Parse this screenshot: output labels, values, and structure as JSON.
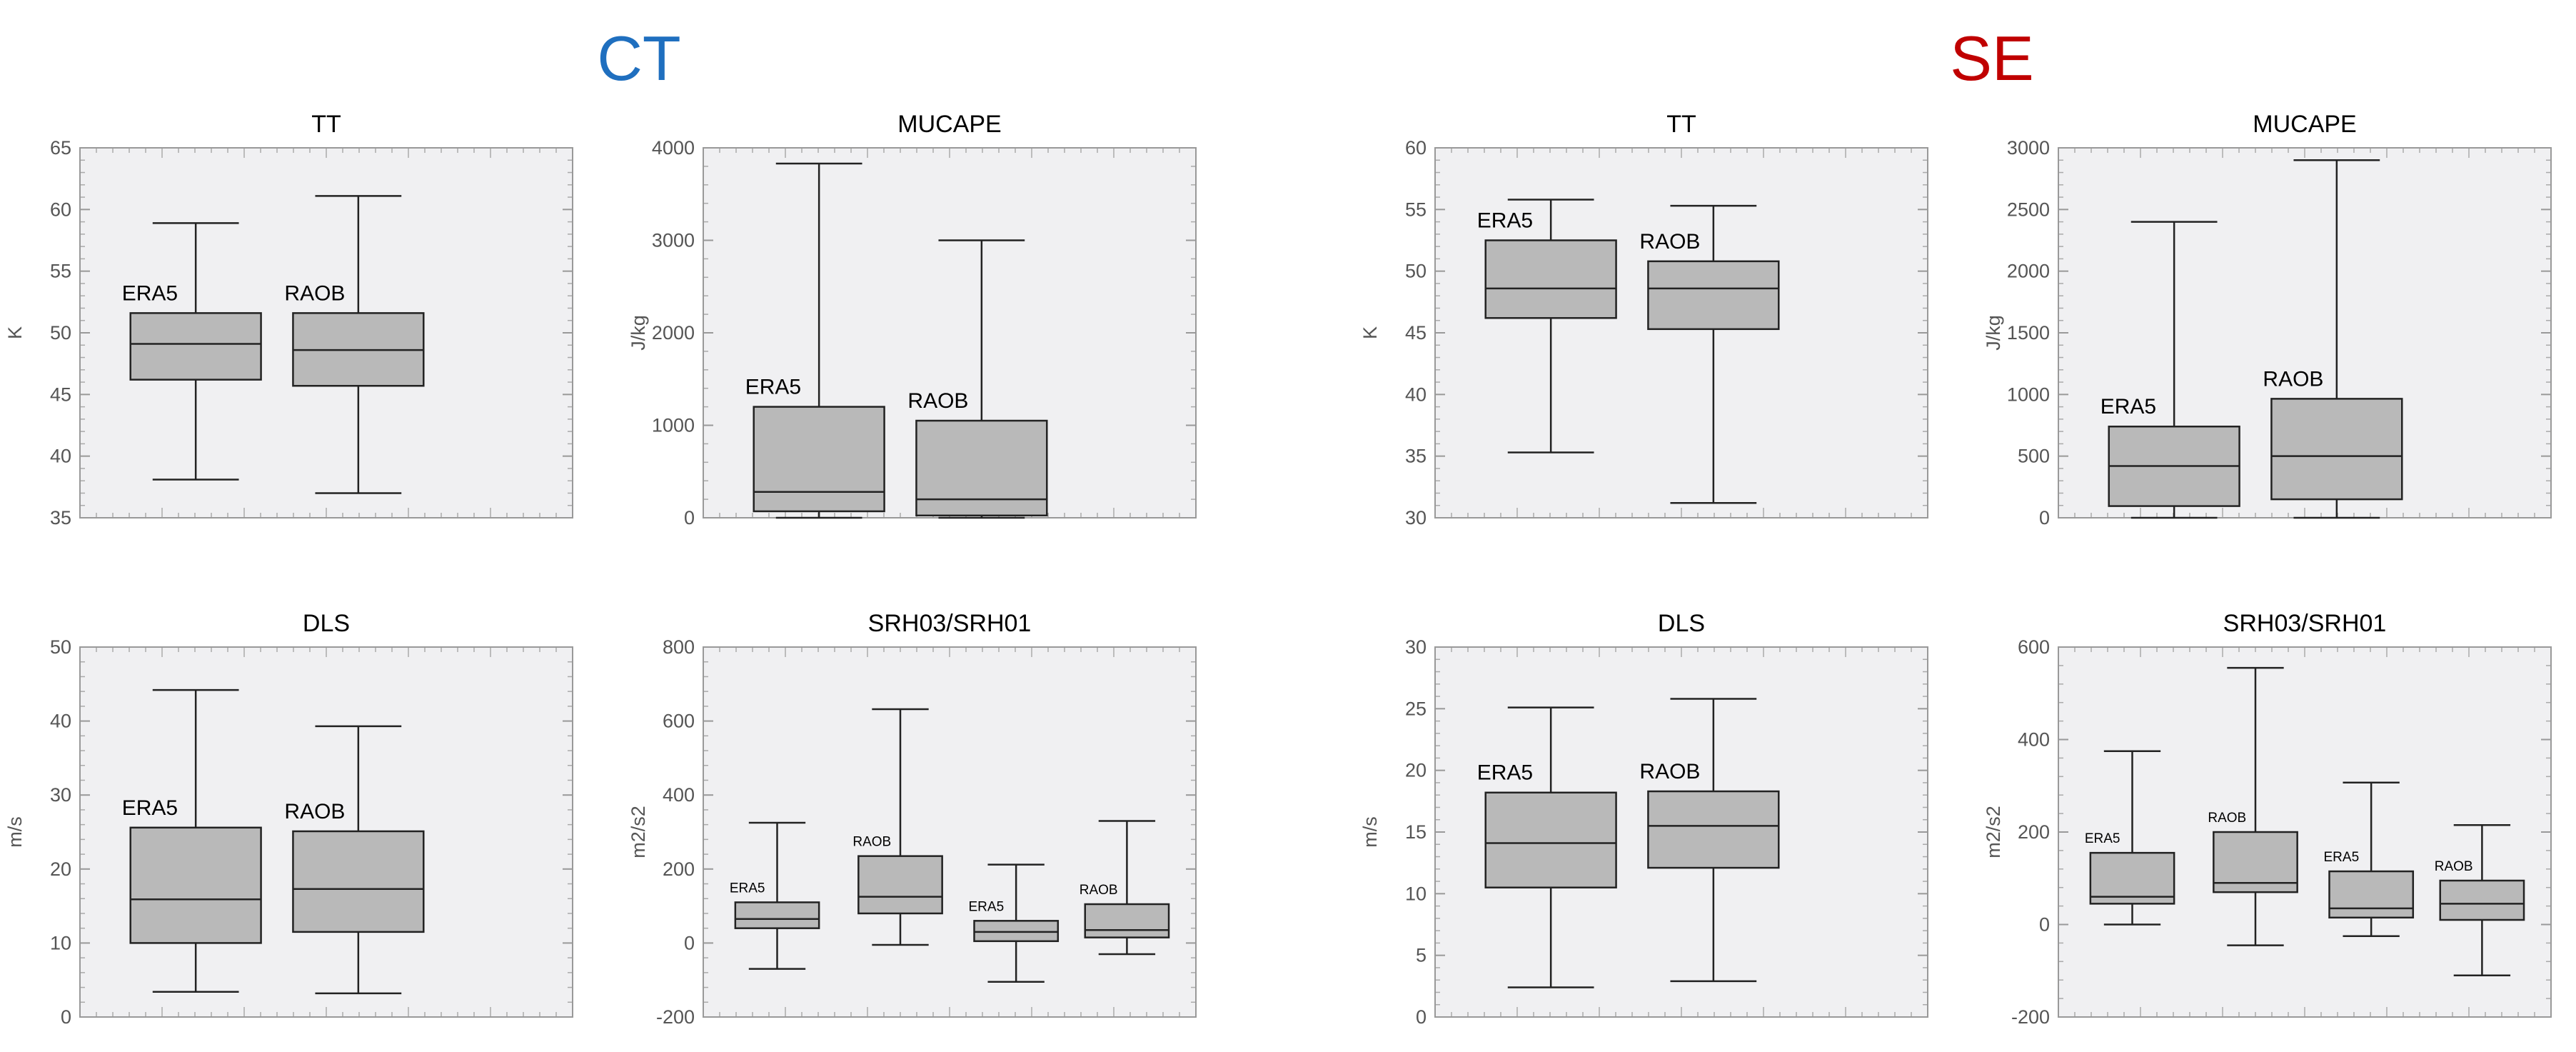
{
  "figure": {
    "groups": [
      {
        "title": "CT",
        "color": "#1f6fbf"
      },
      {
        "title": "SE",
        "color": "#c00000"
      }
    ]
  },
  "chart_data": [
    {
      "type": "box",
      "group": "CT",
      "title": "TT",
      "ylabel": "K",
      "ylim": [
        35,
        65
      ],
      "yticks": [
        35,
        40,
        45,
        50,
        55,
        60,
        65
      ],
      "boxes": [
        {
          "label": "ERA5",
          "min": 38.1,
          "q1": 46.2,
          "median": 49.1,
          "q3": 51.6,
          "max": 58.9
        },
        {
          "label": "RAOB",
          "min": 37.0,
          "q1": 45.7,
          "median": 48.6,
          "q3": 51.6,
          "max": 61.1
        }
      ]
    },
    {
      "type": "box",
      "group": "CT",
      "title": "MUCAPE",
      "ylabel": "J/kg",
      "ylim": [
        0,
        4000
      ],
      "yticks": [
        0,
        1000,
        2000,
        3000,
        4000
      ],
      "boxes": [
        {
          "label": "ERA5",
          "min": 0,
          "q1": 70,
          "median": 280,
          "q3": 1200,
          "max": 3830
        },
        {
          "label": "RAOB",
          "min": 0,
          "q1": 25,
          "median": 200,
          "q3": 1050,
          "max": 3000
        }
      ]
    },
    {
      "type": "box",
      "group": "CT",
      "title": "DLS",
      "ylabel": "m/s",
      "ylim": [
        0,
        50
      ],
      "yticks": [
        0,
        10,
        20,
        30,
        40,
        50
      ],
      "boxes": [
        {
          "label": "ERA5",
          "min": 3.4,
          "q1": 10.0,
          "median": 15.9,
          "q3": 25.6,
          "max": 44.2
        },
        {
          "label": "RAOB",
          "min": 3.2,
          "q1": 11.5,
          "median": 17.3,
          "q3": 25.1,
          "max": 39.3
        }
      ]
    },
    {
      "type": "box",
      "group": "CT",
      "title": "SRH03/SRH01",
      "ylabel": "m2/s2",
      "ylim": [
        -200,
        800
      ],
      "yticks": [
        -200,
        0,
        200,
        400,
        600,
        800
      ],
      "boxes": [
        {
          "label": "ERA5",
          "min": -70,
          "q1": 40,
          "median": 65,
          "q3": 110,
          "max": 325
        },
        {
          "label": "RAOB",
          "min": -5,
          "q1": 80,
          "median": 125,
          "q3": 235,
          "max": 632
        },
        {
          "label": "ERA5",
          "min": -105,
          "q1": 5,
          "median": 30,
          "q3": 60,
          "max": 212
        },
        {
          "label": "RAOB",
          "min": -30,
          "q1": 15,
          "median": 35,
          "q3": 105,
          "max": 330
        }
      ]
    },
    {
      "type": "box",
      "group": "SE",
      "title": "TT",
      "ylabel": "K",
      "ylim": [
        30,
        60
      ],
      "yticks": [
        30,
        35,
        40,
        45,
        50,
        55,
        60
      ],
      "boxes": [
        {
          "label": "ERA5",
          "min": 35.3,
          "q1": 46.2,
          "median": 48.6,
          "q3": 52.5,
          "max": 55.8
        },
        {
          "label": "RAOB",
          "min": 31.2,
          "q1": 45.3,
          "median": 48.6,
          "q3": 50.8,
          "max": 55.3
        }
      ]
    },
    {
      "type": "box",
      "group": "SE",
      "title": "MUCAPE",
      "ylabel": "J/kg",
      "ylim": [
        0,
        3000
      ],
      "yticks": [
        0,
        500,
        1000,
        1500,
        2000,
        2500,
        3000
      ],
      "boxes": [
        {
          "label": "ERA5",
          "min": 0,
          "q1": 95,
          "median": 420,
          "q3": 740,
          "max": 2400
        },
        {
          "label": "RAOB",
          "min": 0,
          "q1": 150,
          "median": 500,
          "q3": 965,
          "max": 2900
        }
      ]
    },
    {
      "type": "box",
      "group": "SE",
      "title": "DLS",
      "ylabel": "m/s",
      "ylim": [
        0,
        30
      ],
      "yticks": [
        0,
        5,
        10,
        15,
        20,
        25,
        30
      ],
      "boxes": [
        {
          "label": "ERA5",
          "min": 2.4,
          "q1": 10.5,
          "median": 14.1,
          "q3": 18.2,
          "max": 25.1
        },
        {
          "label": "RAOB",
          "min": 2.9,
          "q1": 12.1,
          "median": 15.5,
          "q3": 18.3,
          "max": 25.8
        }
      ]
    },
    {
      "type": "box",
      "group": "SE",
      "title": "SRH03/SRH01",
      "ylabel": "m2/s2",
      "ylim": [
        -200,
        600
      ],
      "yticks": [
        -200,
        0,
        200,
        400,
        600
      ],
      "boxes": [
        {
          "label": "ERA5",
          "min": 0,
          "q1": 45,
          "median": 60,
          "q3": 155,
          "max": 375
        },
        {
          "label": "RAOB",
          "min": -45,
          "q1": 70,
          "median": 90,
          "q3": 200,
          "max": 555
        },
        {
          "label": "ERA5",
          "min": -25,
          "q1": 15,
          "median": 35,
          "q3": 115,
          "max": 307
        },
        {
          "label": "RAOB",
          "min": -110,
          "q1": 10,
          "median": 45,
          "q3": 95,
          "max": 215
        }
      ]
    }
  ]
}
